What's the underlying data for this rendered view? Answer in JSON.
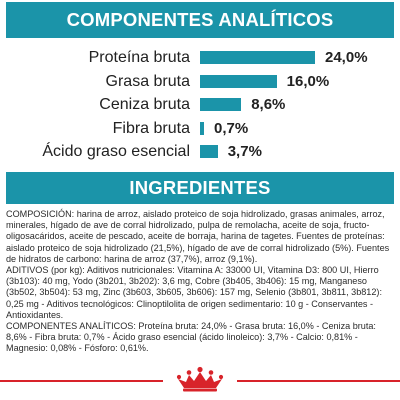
{
  "components": {
    "title": "COMPONENTES ANALÍTICOS",
    "items": [
      {
        "label": "Proteína bruta",
        "value_text": "24,0%",
        "value": 24.0
      },
      {
        "label": "Grasa bruta",
        "value_text": "16,0%",
        "value": 16.0
      },
      {
        "label": "Ceniza bruta",
        "value_text": "8,6%",
        "value": 8.6
      },
      {
        "label": "Fibra bruta",
        "value_text": "0,7%",
        "value": 0.7
      },
      {
        "label": "Ácido graso esencial",
        "value_text": "3,7%",
        "value": 3.7
      }
    ]
  },
  "ingredients": {
    "title": "INGREDIENTES",
    "text": "COMPOSICIÓN: harina de arroz, aislado proteico de soja hidrolizado, grasas animales, arroz, minerales, hígado de ave de corral hidrolizado, pulpa de remolacha, aceite de soja, fructo-oligosacáridos, aceite de pescado, aceite de borraja, harina de tagetes. Fuentes de proteínas: aislado proteico de soja hidrolizado (21,5%), hígado de ave de corral hidrolizado (5%). Fuentes de hidratos de carbono: harina de arroz (37,7%), arroz (9,1%).\nADITIVOS (por kg): Aditivos nutricionales: Vitamina A: 33000 UI, Vitamina D3: 800 UI, Hierro (3b103): 40 mg, Yodo (3b201, 3b202): 3,6 mg, Cobre (3b405, 3b406): 15 mg, Manganeso (3b502, 3b504): 53 mg, Zinc (3b603, 3b605, 3b606): 157 mg, Selenio (3b801, 3b811, 3b812): 0,25 mg - Aditivos tecnológicos: Clinoptilolita de origen sedimentario: 10 g - Conservantes - Antioxidantes.\nCOMPONENTES ANALÍTICOS: Proteína bruta: 24,0% - Grasa bruta: 16,0% - Ceniza bruta: 8,6% - Fibra bruta: 0,7% - Ácido graso esencial (ácido linoleico): 3,7% - Calcio: 0,81% - Magnesio: 0,08% - Fósforo: 0,61%."
  },
  "colors": {
    "accent": "#1b94a9",
    "brand_red": "#d8232a"
  },
  "footer": {
    "logo": "crown-icon"
  }
}
